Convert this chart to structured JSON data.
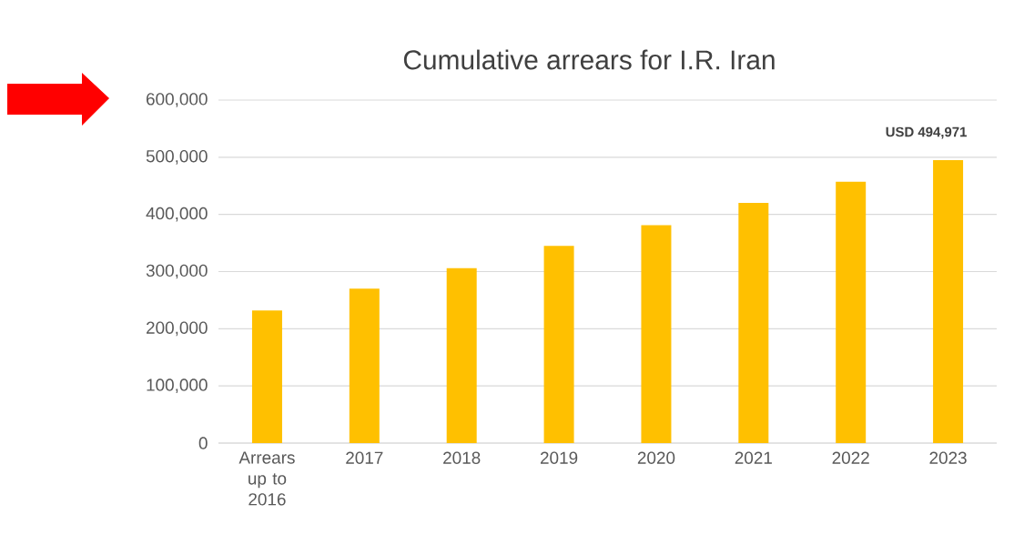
{
  "chart_data": {
    "type": "bar",
    "title": "Cumulative arrears for I.R. Iran",
    "categories": [
      "Arrears up to 2016",
      "2017",
      "2018",
      "2019",
      "2020",
      "2021",
      "2022",
      "2023"
    ],
    "values": [
      232000,
      270000,
      306000,
      345000,
      381000,
      420000,
      457000,
      494971
    ],
    "value_labels": [
      null,
      null,
      null,
      null,
      null,
      null,
      null,
      "USD 494,971"
    ],
    "color": "#ffc000",
    "ylim": [
      0,
      600000
    ],
    "yticks": [
      {
        "value": 0,
        "label": "0"
      },
      {
        "value": 100000,
        "label": "100,000"
      },
      {
        "value": 200000,
        "label": "200,000"
      },
      {
        "value": 300000,
        "label": "300,000"
      },
      {
        "value": 400000,
        "label": "400,000"
      },
      {
        "value": 500000,
        "label": "500,000"
      },
      {
        "value": 600000,
        "label": "600,000"
      }
    ],
    "grid": "y"
  }
}
